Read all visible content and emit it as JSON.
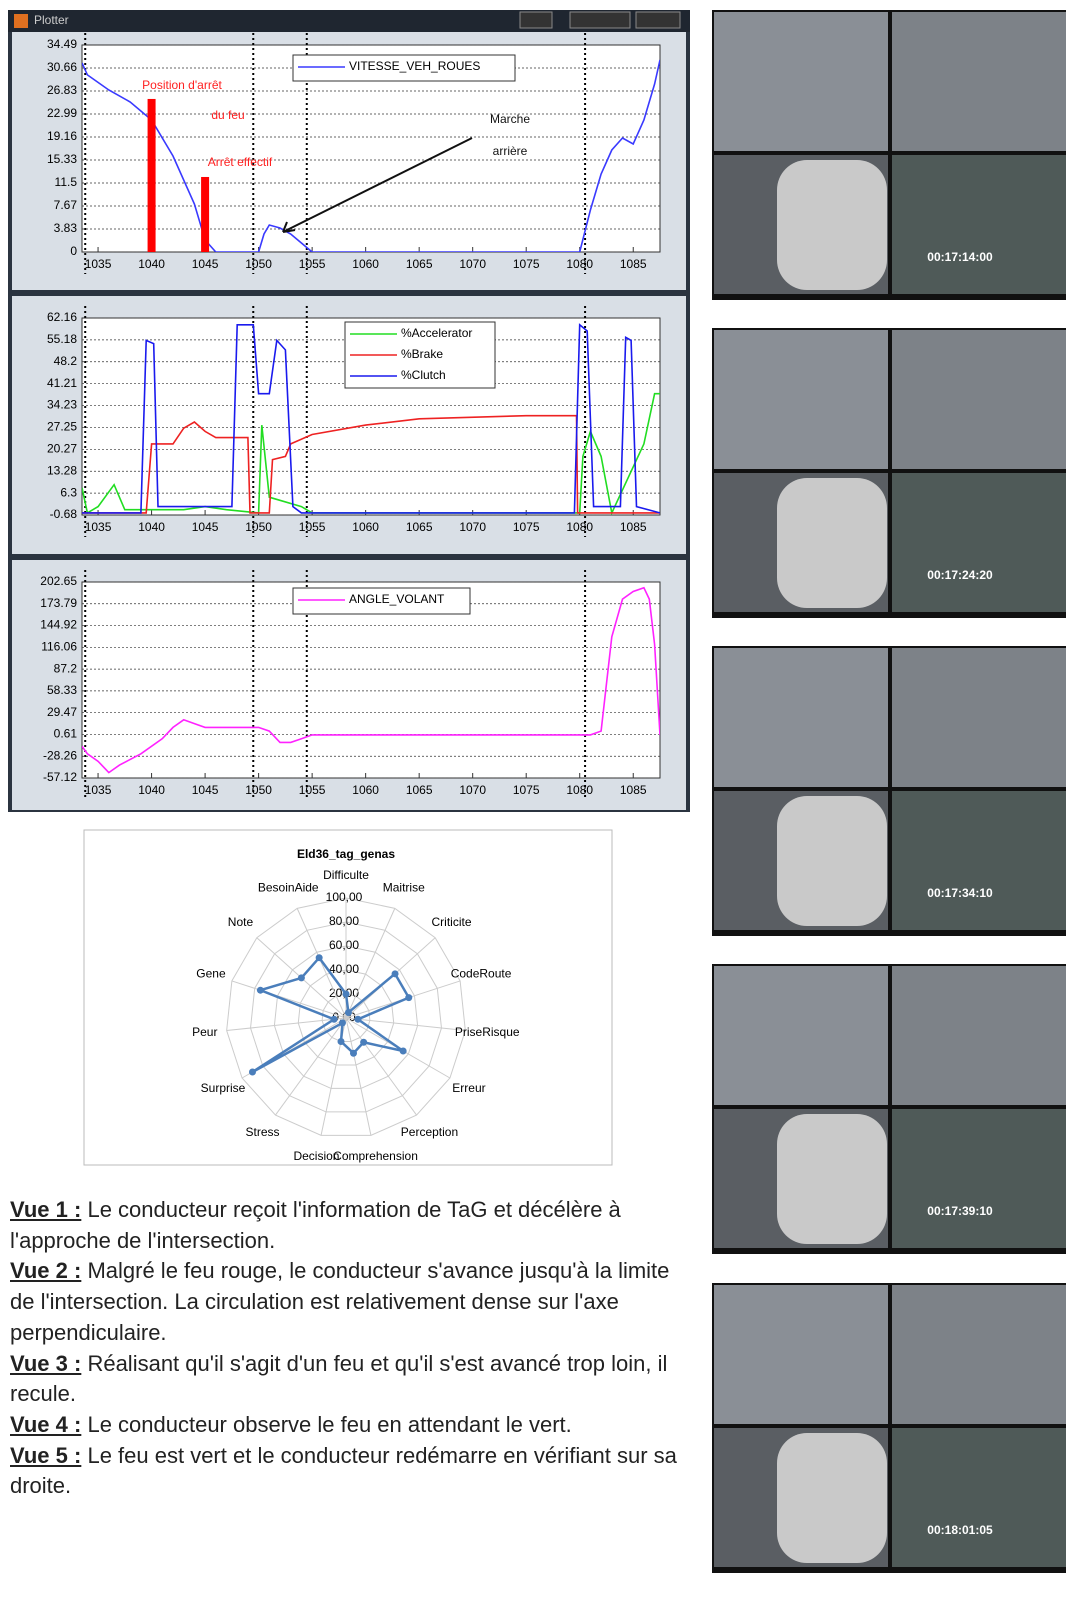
{
  "window": {
    "title": "Plotter"
  },
  "cursor_x": [
    1033.8,
    1049.5,
    1054.5,
    1080.5
  ],
  "chart_data": [
    {
      "type": "line",
      "legend": "upper center",
      "grid": true,
      "xlim": [
        1033.5,
        1087.5
      ],
      "xticks": [
        1035,
        1040,
        1045,
        1050,
        1055,
        1060,
        1065,
        1070,
        1075,
        1080,
        1085
      ],
      "ylim": [
        0,
        34.49
      ],
      "yticks": [
        0,
        3.83,
        7.67,
        11.5,
        15.33,
        19.16,
        22.99,
        26.83,
        30.66,
        34.49
      ],
      "series": [
        {
          "name": "VITESSE_VEH_ROUES",
          "color": "#3a3aff",
          "x": [
            1033.5,
            1034,
            1036,
            1038,
            1040,
            1042,
            1044,
            1045,
            1046,
            1050,
            1050.5,
            1051,
            1052,
            1053,
            1054,
            1055,
            1080,
            1081,
            1082,
            1083,
            1084,
            1085,
            1086,
            1087,
            1087.5
          ],
          "values": [
            31.5,
            29.5,
            27,
            25,
            22,
            16,
            8,
            2,
            0,
            0,
            3,
            4.5,
            4,
            3,
            1.5,
            0,
            0,
            7,
            13,
            17,
            19,
            18,
            22,
            28,
            32
          ]
        }
      ],
      "markers": {
        "color": "#ff0000",
        "x": [
          1040,
          1045
        ],
        "values": [
          25.5,
          12.5
        ]
      },
      "annotations": [
        "Position d'arrêt",
        "du feu",
        "Arrêt effectif",
        "Marche",
        "arrière"
      ]
    },
    {
      "type": "line",
      "legend": "upper center",
      "grid": true,
      "xlim": [
        1033.5,
        1087.5
      ],
      "xticks": [
        1035,
        1040,
        1045,
        1050,
        1055,
        1060,
        1065,
        1070,
        1075,
        1080,
        1085
      ],
      "ylim": [
        -0.68,
        62.16
      ],
      "yticks": [
        -0.68,
        6.3,
        13.28,
        20.27,
        27.25,
        34.23,
        41.21,
        48.2,
        55.18,
        62.16
      ],
      "series": [
        {
          "name": "%Accelerator",
          "color": "#22dd22",
          "x": [
            1033.5,
            1034,
            1035,
            1036.5,
            1037.5,
            1043,
            1045,
            1047,
            1050,
            1050.3,
            1051,
            1054,
            1055,
            1080,
            1080.3,
            1081,
            1082,
            1083,
            1086,
            1087,
            1087.5
          ],
          "values": [
            8,
            0,
            2,
            9,
            1,
            1,
            2,
            1,
            0,
            28,
            5,
            2,
            0,
            0,
            18,
            26,
            18,
            0,
            22,
            38,
            38
          ]
        },
        {
          "name": "%Brake",
          "color": "#ee2222",
          "x": [
            1033.5,
            1039.5,
            1040,
            1042,
            1043,
            1044,
            1045,
            1046,
            1049,
            1049.2,
            1051,
            1051.3,
            1052.5,
            1053,
            1055,
            1060,
            1065,
            1075,
            1079.7,
            1079.8,
            1087.5
          ],
          "values": [
            0,
            0,
            22,
            22,
            27,
            29,
            26,
            24,
            24,
            0,
            0,
            17,
            18,
            22,
            25,
            28,
            30,
            31,
            31,
            0,
            0
          ]
        },
        {
          "name": "%Clutch",
          "color": "#1a1aee",
          "x": [
            1033.5,
            1039,
            1039.5,
            1040.2,
            1040.6,
            1047.5,
            1048,
            1049.5,
            1050,
            1051,
            1051.7,
            1052.5,
            1053.2,
            1054,
            1079.5,
            1080,
            1080.7,
            1081.3,
            1083.8,
            1084.3,
            1084.8,
            1085.3,
            1087.5
          ],
          "values": [
            0,
            0,
            55,
            54,
            2,
            2,
            60,
            60,
            38,
            38,
            55,
            52,
            2,
            0,
            0,
            60,
            58,
            2,
            2,
            56,
            55,
            2,
            0
          ]
        }
      ]
    },
    {
      "type": "line",
      "legend": "upper center",
      "grid": true,
      "xlim": [
        1033.5,
        1087.5
      ],
      "xticks": [
        1035,
        1040,
        1045,
        1050,
        1055,
        1060,
        1065,
        1070,
        1075,
        1080,
        1085
      ],
      "ylim": [
        -57.12,
        202.65
      ],
      "yticks": [
        -57.12,
        -28.26,
        0.61,
        29.47,
        58.33,
        87.2,
        116.06,
        144.92,
        173.79,
        202.65
      ],
      "series": [
        {
          "name": "ANGLE_VOLANT",
          "color": "#ff22ff",
          "x": [
            1033.5,
            1034,
            1035,
            1036,
            1037,
            1039,
            1041,
            1042,
            1043,
            1044,
            1045,
            1048,
            1050,
            1051,
            1052,
            1053,
            1054,
            1055,
            1081,
            1082,
            1083,
            1084,
            1085,
            1086,
            1086.5,
            1087,
            1087.5
          ],
          "values": [
            -15,
            -25,
            -35,
            -50,
            -40,
            -25,
            -5,
            10,
            20,
            15,
            10,
            10,
            10,
            5,
            -10,
            -10,
            -5,
            0,
            0,
            5,
            130,
            180,
            190,
            195,
            180,
            120,
            0
          ]
        }
      ]
    },
    {
      "type": "radar",
      "title": "Eld36_tag_genas",
      "color": "#4a7ebb",
      "rlim": [
        0,
        100
      ],
      "rticks": [
        {
          "value": 0,
          "label": "0,00"
        },
        {
          "value": 20,
          "label": "20,00"
        },
        {
          "value": 40,
          "label": "40,00"
        },
        {
          "value": 60,
          "label": "60,00"
        },
        {
          "value": 80,
          "label": "80,00"
        },
        {
          "value": 100,
          "label": "100,00"
        }
      ],
      "categories": [
        "Difficulte",
        "Maitrise",
        "Criticite",
        "CodeRoute",
        "PriseRisque",
        "Erreur",
        "Perception",
        "Comprehension",
        "Decision",
        "Stress",
        "Surprise",
        "Peur",
        "Gene",
        "Note",
        "BesoinAide"
      ],
      "values": [
        20,
        5,
        55,
        55,
        10,
        55,
        25,
        30,
        20,
        5,
        90,
        10,
        75,
        50,
        55
      ]
    }
  ],
  "captions": [
    {
      "label": "Vue 1 :",
      "text": "Le conducteur reçoit l'information de TaG et décélère à l'approche de l'intersection."
    },
    {
      "label": "Vue 2 :",
      "text": "Malgré le feu rouge, le conducteur s'avance jusqu'à la limite de l'intersection. La circulation est relativement dense sur l'axe perpendiculaire."
    },
    {
      "label": "Vue 3 :",
      "text": "Réalisant qu'il s'agit d'un feu et qu'il s'est avancé trop loin, il recule."
    },
    {
      "label": "Vue 4 :",
      "text": "Le conducteur observe le feu en attendant le vert."
    },
    {
      "label": "Vue 5 :",
      "text": "Le feu est vert et le conducteur redémarre en vérifiant sur sa droite."
    }
  ],
  "video_frames": [
    "00:17:14:00",
    "00:17:24:20",
    "00:17:34:10",
    "00:17:39:10",
    "00:18:01:05"
  ]
}
